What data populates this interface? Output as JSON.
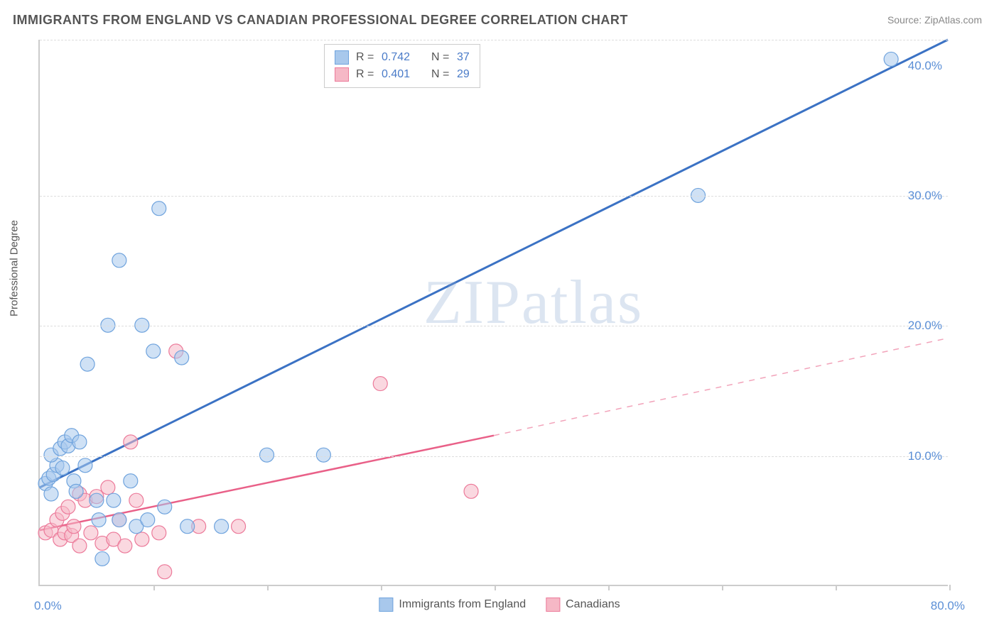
{
  "title": "IMMIGRANTS FROM ENGLAND VS CANADIAN PROFESSIONAL DEGREE CORRELATION CHART",
  "source": "Source: ZipAtlas.com",
  "watermark": "ZIPatlas",
  "ylabel": "Professional Degree",
  "chart": {
    "type": "scatter",
    "xlim": [
      0,
      80
    ],
    "ylim": [
      0,
      42
    ],
    "xticks": [
      0,
      10,
      20,
      30,
      40,
      50,
      60,
      70,
      80
    ],
    "ygrid": [
      10,
      20,
      30,
      42
    ],
    "ytick_labels_right": [
      {
        "v": 10,
        "label": "10.0%"
      },
      {
        "v": 20,
        "label": "20.0%"
      },
      {
        "v": 30,
        "label": "30.0%"
      },
      {
        "v": 40,
        "label": "40.0%"
      }
    ],
    "xlabel_min": "0.0%",
    "xlabel_max": "80.0%",
    "background_color": "#ffffff",
    "grid_color": "#dddddd",
    "axis_color": "#cccccc",
    "tick_label_color": "#5b8fd6",
    "point_radius": 10,
    "point_opacity": 0.55,
    "line_width_blue": 3,
    "line_width_pink": 2.5
  },
  "series_blue": {
    "name": "Immigrants from England",
    "color_fill": "#a8c8ec",
    "color_stroke": "#6fa3dd",
    "r": "0.742",
    "n": "37",
    "trend": {
      "x1": 0,
      "y1": 7.5,
      "x2": 80,
      "y2": 42
    },
    "points": [
      [
        0.5,
        7.8
      ],
      [
        0.8,
        8.2
      ],
      [
        1.0,
        7.0
      ],
      [
        1.2,
        8.5
      ],
      [
        1.5,
        9.2
      ],
      [
        1.0,
        10.0
      ],
      [
        1.8,
        10.5
      ],
      [
        2.0,
        9.0
      ],
      [
        2.2,
        11.0
      ],
      [
        2.5,
        10.7
      ],
      [
        2.8,
        11.5
      ],
      [
        3.0,
        8.0
      ],
      [
        3.2,
        7.2
      ],
      [
        3.5,
        11.0
      ],
      [
        4.0,
        9.2
      ],
      [
        4.2,
        17.0
      ],
      [
        5.0,
        6.5
      ],
      [
        5.2,
        5.0
      ],
      [
        5.5,
        2.0
      ],
      [
        6.0,
        20.0
      ],
      [
        6.5,
        6.5
      ],
      [
        7.0,
        25.0
      ],
      [
        7.0,
        5.0
      ],
      [
        8.0,
        8.0
      ],
      [
        8.5,
        4.5
      ],
      [
        9.0,
        20.0
      ],
      [
        9.5,
        5.0
      ],
      [
        10.0,
        18.0
      ],
      [
        10.5,
        29.0
      ],
      [
        11.0,
        6.0
      ],
      [
        12.5,
        17.5
      ],
      [
        13.0,
        4.5
      ],
      [
        16.0,
        4.5
      ],
      [
        20.0,
        10.0
      ],
      [
        25.0,
        10.0
      ],
      [
        58.0,
        30.0
      ],
      [
        75.0,
        40.5
      ]
    ]
  },
  "series_pink": {
    "name": "Canadians",
    "color_fill": "#f6b8c6",
    "color_stroke": "#ec7a9a",
    "r": "0.401",
    "n": "29",
    "trend_solid": {
      "x1": 0,
      "y1": 4.2,
      "x2": 40,
      "y2": 11.5
    },
    "trend_dashed": {
      "x1": 40,
      "y1": 11.5,
      "x2": 80,
      "y2": 19.0
    },
    "points": [
      [
        0.5,
        4.0
      ],
      [
        1.0,
        4.2
      ],
      [
        1.5,
        5.0
      ],
      [
        1.8,
        3.5
      ],
      [
        2.0,
        5.5
      ],
      [
        2.2,
        4.0
      ],
      [
        2.5,
        6.0
      ],
      [
        2.8,
        3.8
      ],
      [
        3.0,
        4.5
      ],
      [
        3.5,
        7.0
      ],
      [
        3.5,
        3.0
      ],
      [
        4.0,
        6.5
      ],
      [
        4.5,
        4.0
      ],
      [
        5.0,
        6.8
      ],
      [
        5.5,
        3.2
      ],
      [
        6.0,
        7.5
      ],
      [
        6.5,
        3.5
      ],
      [
        7.0,
        5.0
      ],
      [
        7.5,
        3.0
      ],
      [
        8.0,
        11.0
      ],
      [
        8.5,
        6.5
      ],
      [
        9.0,
        3.5
      ],
      [
        10.5,
        4.0
      ],
      [
        11.0,
        1.0
      ],
      [
        12.0,
        18.0
      ],
      [
        14.0,
        4.5
      ],
      [
        17.5,
        4.5
      ],
      [
        30.0,
        15.5
      ],
      [
        38.0,
        7.2
      ]
    ]
  },
  "legend_top": {
    "r_label": "R =",
    "n_label": "N ="
  },
  "legend_bottom": {
    "blue": "Immigrants from England",
    "pink": "Canadians"
  }
}
